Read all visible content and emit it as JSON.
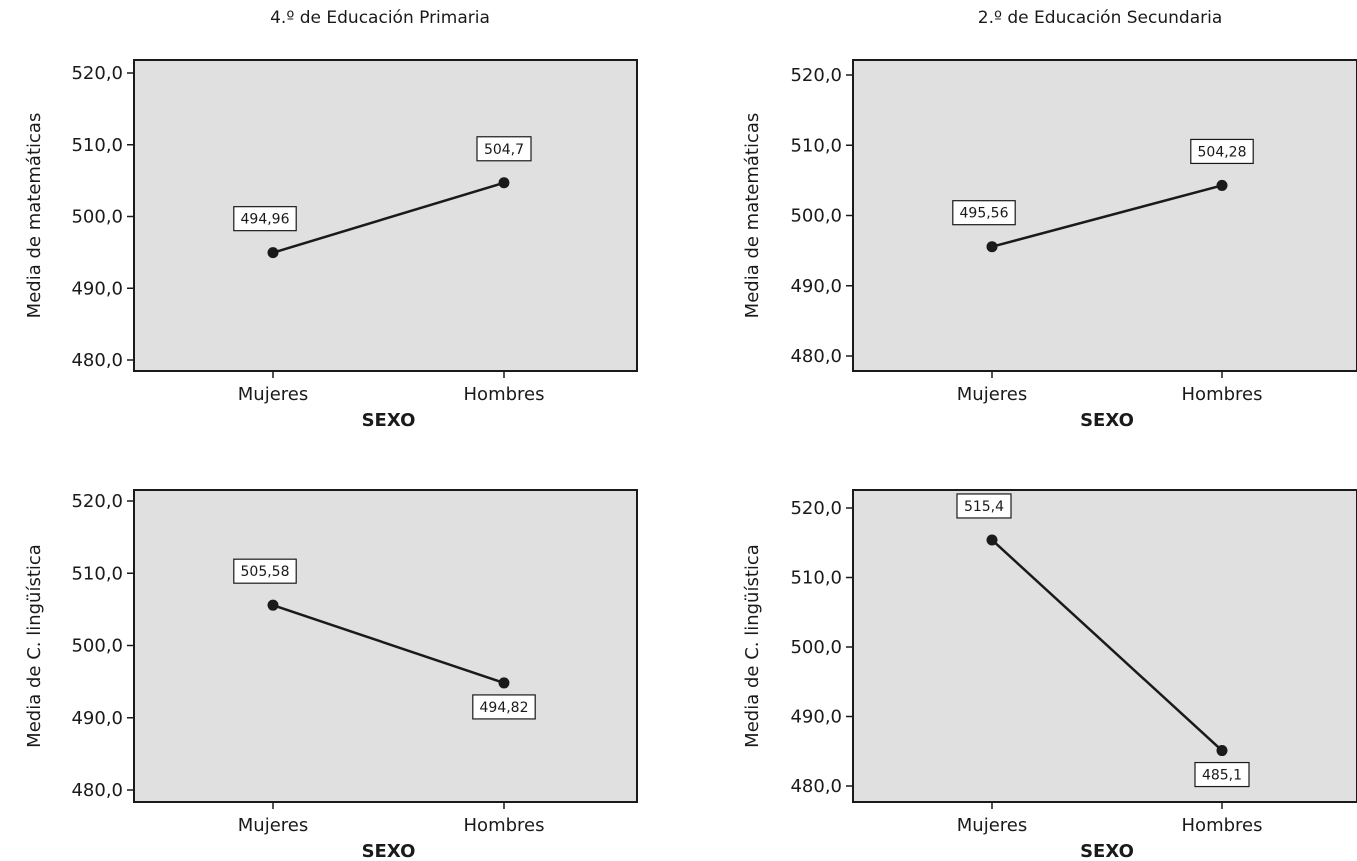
{
  "column_titles": [
    "4.º de Educación Primaria",
    "2.º de Educación Secundaria"
  ],
  "colors": {
    "plot_bg": "#e0e0e0",
    "line": "#1a1a1a",
    "marker": "#1a1a1a",
    "label_box": "#ffffff"
  },
  "chart_data": [
    {
      "type": "line",
      "column_title": "4.º de Educación Primaria",
      "xlabel": "SEXO",
      "ylabel": "Media de matemáticas",
      "categories": [
        "Mujeres",
        "Hombres"
      ],
      "values": [
        494.96,
        504.7
      ],
      "data_labels": [
        "494,96",
        "504,7"
      ],
      "ylim": [
        478,
        522
      ],
      "yticks": [
        480,
        490,
        500,
        510,
        520
      ],
      "ytick_labels": [
        "480,0",
        "490,0",
        "500,0",
        "510,0",
        "520,0"
      ],
      "grid": false,
      "legend": "none"
    },
    {
      "type": "line",
      "column_title": "2.º de Educación Secundaria",
      "xlabel": "SEXO",
      "ylabel": "Media de matemáticas",
      "categories": [
        "Mujeres",
        "Hombres"
      ],
      "values": [
        495.56,
        504.28
      ],
      "data_labels": [
        "495,56",
        "504,28"
      ],
      "ylim": [
        478,
        522
      ],
      "yticks": [
        480,
        490,
        500,
        510,
        520
      ],
      "ytick_labels": [
        "480,0",
        "490,0",
        "500,0",
        "510,0",
        "520,0"
      ],
      "grid": false,
      "legend": "none"
    },
    {
      "type": "line",
      "column_title": "4.º de Educación Primaria",
      "xlabel": "SEXO",
      "ylabel": "Media de C. lingüística",
      "categories": [
        "Mujeres",
        "Hombres"
      ],
      "values": [
        505.58,
        494.82
      ],
      "data_labels": [
        "505,58",
        "494,82"
      ],
      "ylim": [
        478,
        522
      ],
      "yticks": [
        480,
        490,
        500,
        510,
        520
      ],
      "ytick_labels": [
        "480,0",
        "490,0",
        "500,0",
        "510,0",
        "520,0"
      ],
      "grid": false,
      "legend": "none"
    },
    {
      "type": "line",
      "column_title": "2.º de Educación Secundaria",
      "xlabel": "SEXO",
      "ylabel": "Media de C. lingüística",
      "categories": [
        "Mujeres",
        "Hombres"
      ],
      "values": [
        515.4,
        485.1
      ],
      "data_labels": [
        "515,4",
        "485,1"
      ],
      "ylim": [
        478,
        522
      ],
      "yticks": [
        480,
        490,
        500,
        510,
        520
      ],
      "ytick_labels": [
        "480,0",
        "490,0",
        "500,0",
        "510,0",
        "520,0"
      ],
      "grid": false,
      "legend": "none"
    }
  ]
}
